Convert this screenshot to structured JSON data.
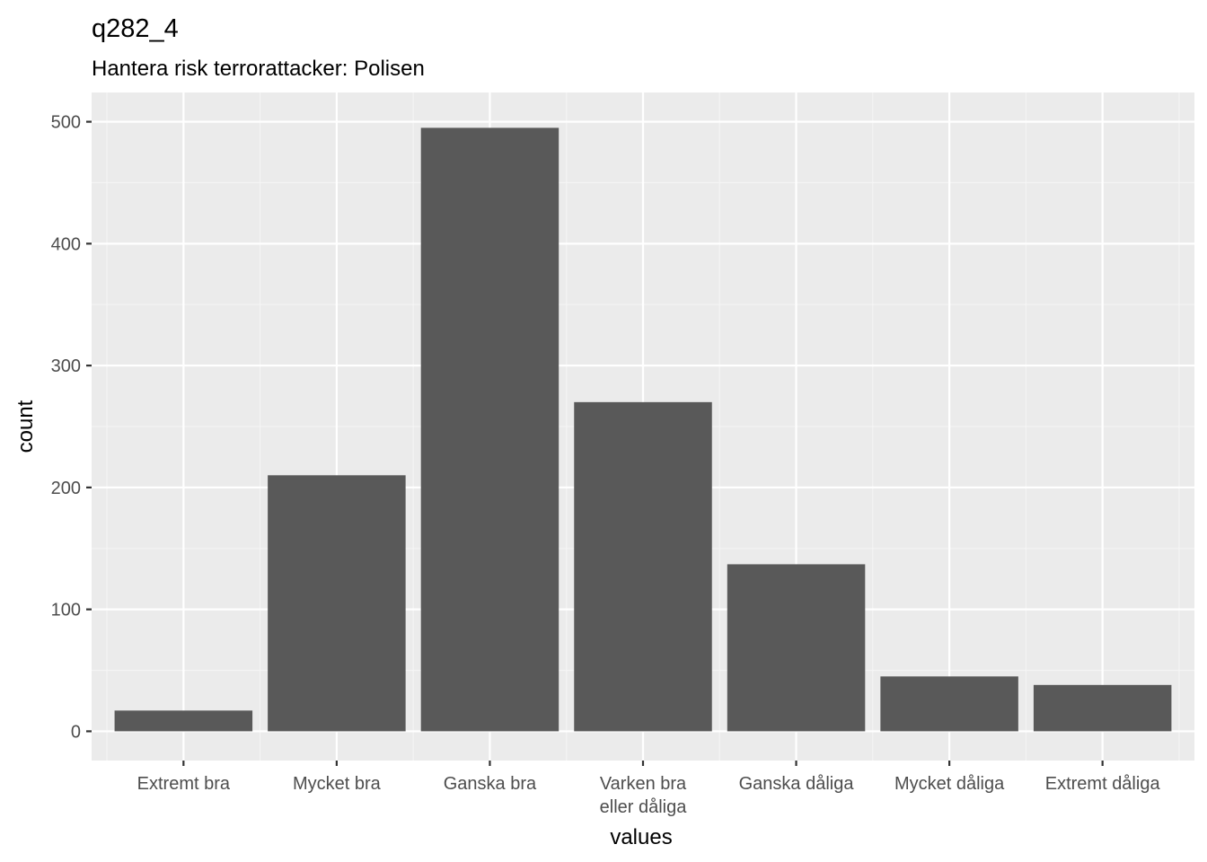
{
  "chart_data": {
    "type": "bar",
    "title": "q282_4",
    "subtitle": "Hantera risk terrorattacker: Polisen",
    "xlabel": "values",
    "ylabel": "count",
    "categories": [
      "Extremt bra",
      "Mycket bra",
      "Ganska bra",
      "Varken bra eller dåliga",
      "Ganska dåliga",
      "Mycket dåliga",
      "Extremt dåliga"
    ],
    "category_labels": [
      [
        "Extremt bra"
      ],
      [
        "Mycket bra"
      ],
      [
        "Ganska bra"
      ],
      [
        "Varken bra",
        "eller dåliga"
      ],
      [
        "Ganska dåliga"
      ],
      [
        "Mycket dåliga"
      ],
      [
        "Extremt dåliga"
      ]
    ],
    "values": [
      17,
      210,
      495,
      270,
      137,
      45,
      38
    ],
    "ylim": [
      -24,
      524
    ],
    "yticks": [
      0,
      100,
      200,
      300,
      400,
      500
    ],
    "grid": true,
    "legend": "none",
    "colors": {
      "bar": "#595959",
      "panel": "#ebebeb",
      "grid_major": "#ffffff",
      "grid_minor": "#f5f5f5",
      "tick_text": "#4d4d4d",
      "tick_mark": "#333333"
    }
  }
}
